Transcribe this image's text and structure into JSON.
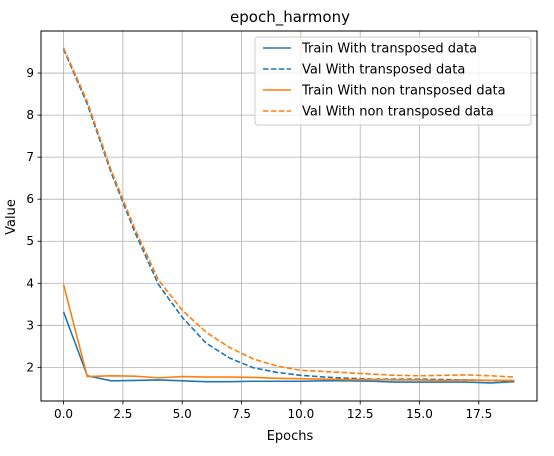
{
  "chart_data": {
    "type": "line",
    "title": "epoch_harmony",
    "xlabel": "Epochs",
    "ylabel": "Value",
    "xlim": [
      -0.95,
      19.95
    ],
    "ylim": [
      1.2,
      10
    ],
    "grid": true,
    "legend_position": "top-right",
    "x_ticks": [
      0.0,
      2.5,
      5.0,
      7.5,
      10.0,
      12.5,
      15.0,
      17.5
    ],
    "x_tick_labels": [
      "0.0",
      "2.5",
      "5.0",
      "7.5",
      "10.0",
      "12.5",
      "15.0",
      "17.5"
    ],
    "y_ticks": [
      2,
      3,
      4,
      5,
      6,
      7,
      8,
      9
    ],
    "y_tick_labels": [
      "2",
      "3",
      "4",
      "5",
      "6",
      "7",
      "8",
      "9"
    ],
    "x": [
      0,
      1,
      2,
      3,
      4,
      5,
      6,
      7,
      8,
      9,
      10,
      11,
      12,
      13,
      14,
      15,
      16,
      17,
      18,
      19
    ],
    "series": [
      {
        "name": "Train With transposed data",
        "color": "#1f77b4",
        "dash": "solid",
        "values": [
          3.32,
          1.8,
          1.68,
          1.69,
          1.7,
          1.68,
          1.66,
          1.66,
          1.67,
          1.67,
          1.67,
          1.68,
          1.68,
          1.67,
          1.65,
          1.65,
          1.65,
          1.65,
          1.63,
          1.66
        ]
      },
      {
        "name": "Val With transposed data",
        "color": "#1f77b4",
        "dash": "dashed",
        "values": [
          9.57,
          8.26,
          6.64,
          5.22,
          3.97,
          3.19,
          2.58,
          2.22,
          1.99,
          1.88,
          1.81,
          1.77,
          1.74,
          1.72,
          1.72,
          1.72,
          1.71,
          1.7,
          1.69,
          1.68
        ]
      },
      {
        "name": "Train With non transposed data",
        "color": "#ff7f0e",
        "dash": "solid",
        "values": [
          3.97,
          1.78,
          1.8,
          1.79,
          1.75,
          1.78,
          1.77,
          1.77,
          1.76,
          1.74,
          1.73,
          1.72,
          1.71,
          1.71,
          1.7,
          1.7,
          1.69,
          1.7,
          1.69,
          1.69
        ]
      },
      {
        "name": "Val With non transposed data",
        "color": "#ff7f0e",
        "dash": "dashed",
        "values": [
          9.6,
          8.32,
          6.7,
          5.3,
          4.08,
          3.36,
          2.84,
          2.47,
          2.2,
          2.03,
          1.93,
          1.9,
          1.87,
          1.84,
          1.81,
          1.8,
          1.81,
          1.82,
          1.8,
          1.77
        ]
      }
    ]
  }
}
